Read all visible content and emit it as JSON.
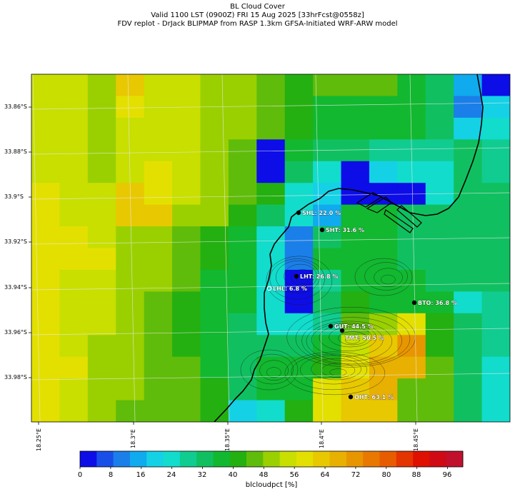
{
  "title": {
    "line1": "BL Cloud Cover",
    "line2": "Valid 1100 LST (0900Z) FRI 15 Aug 2025 [33hrFcst@0558z]",
    "line3": "FDV replot - DrJack BLIPMAP from RASP 1.3km GFSA-Initiated WRF-ARW model"
  },
  "lat_labels": [
    "33.86°S",
    "33.88°S",
    "33.9°S",
    "33.92°S",
    "33.94°S",
    "33.96°S",
    "33.98°S"
  ],
  "lon_labels": [
    "18.25°E",
    "18.3°E",
    "18.35°E",
    "18.4°E",
    "18.45°E"
  ],
  "colorbar": {
    "label": "blcloudpct [%]",
    "ticks": [
      "0",
      "8",
      "16",
      "24",
      "32",
      "40",
      "48",
      "56",
      "64",
      "72",
      "80",
      "88",
      "96"
    ],
    "colors": [
      "#0d0de8",
      "#1a4ee8",
      "#1a7fe8",
      "#10aaee",
      "#14d1e6",
      "#12dccc",
      "#10cc90",
      "#10c060",
      "#12b830",
      "#24b010",
      "#60bc0a",
      "#9ad000",
      "#c8df00",
      "#e3e000",
      "#e8c800",
      "#e8b000",
      "#e89600",
      "#e87800",
      "#e85c00",
      "#e43400",
      "#e01000",
      "#d00a14",
      "#c0102c"
    ]
  },
  "stations": [
    {
      "id": "SHL",
      "label": "SHL: 22.0 %",
      "value": 22.0
    },
    {
      "id": "SHT",
      "label": "SHT: 31.6 %",
      "value": 31.6
    },
    {
      "id": "LHT",
      "label": "LHT: 26.8 %",
      "value": 26.8
    },
    {
      "id": "LHL",
      "label": "LHL: 6.8 %",
      "value": 6.8
    },
    {
      "id": "BTO",
      "label": "BTO: 36.8 %",
      "value": 36.8
    },
    {
      "id": "GUT",
      "label": "GUT: 44.5 %",
      "value": 44.5
    },
    {
      "id": "TMT",
      "label": "TMT: 50.5 %",
      "value": 50.5
    },
    {
      "id": "OHT",
      "label": "OHT: 63.1 %",
      "value": 63.1
    }
  ],
  "grid_values": [
    [
      56,
      56,
      52,
      62,
      56,
      56,
      52,
      48,
      44,
      42,
      44,
      44,
      44,
      38,
      34,
      14,
      2
    ],
    [
      56,
      56,
      52,
      60,
      56,
      56,
      52,
      48,
      44,
      42,
      38,
      38,
      38,
      38,
      34,
      10,
      20
    ],
    [
      56,
      56,
      52,
      56,
      56,
      56,
      52,
      48,
      44,
      42,
      38,
      38,
      38,
      38,
      34,
      20,
      24
    ],
    [
      56,
      56,
      52,
      56,
      56,
      56,
      52,
      46,
      2,
      38,
      34,
      34,
      30,
      30,
      30,
      34,
      30
    ],
    [
      56,
      56,
      52,
      56,
      60,
      56,
      50,
      46,
      2,
      34,
      26,
      2,
      18,
      24,
      24,
      34,
      30
    ],
    [
      60,
      56,
      56,
      62,
      60,
      56,
      52,
      44,
      40,
      24,
      18,
      2,
      2,
      2,
      26,
      34,
      34
    ],
    [
      60,
      56,
      56,
      62,
      62,
      52,
      50,
      40,
      34,
      26,
      14,
      36,
      36,
      34,
      34,
      34,
      34
    ],
    [
      60,
      60,
      56,
      52,
      50,
      44,
      42,
      36,
      24,
      10,
      34,
      36,
      36,
      34,
      34,
      34,
      34
    ],
    [
      60,
      60,
      60,
      52,
      50,
      44,
      40,
      36,
      24,
      10,
      36,
      36,
      36,
      34,
      34,
      34,
      34
    ],
    [
      60,
      56,
      56,
      52,
      48,
      44,
      38,
      36,
      24,
      2,
      30,
      36,
      36,
      36,
      34,
      34,
      34
    ],
    [
      60,
      56,
      56,
      48,
      44,
      42,
      38,
      36,
      24,
      2,
      34,
      40,
      36,
      36,
      38,
      26,
      30
    ],
    [
      60,
      56,
      56,
      48,
      44,
      40,
      38,
      34,
      24,
      22,
      30,
      44,
      50,
      60,
      40,
      34,
      30
    ],
    [
      60,
      56,
      52,
      48,
      44,
      40,
      38,
      34,
      34,
      34,
      36,
      56,
      62,
      70,
      40,
      34,
      30
    ],
    [
      60,
      60,
      52,
      48,
      44,
      44,
      38,
      34,
      36,
      38,
      42,
      60,
      68,
      68,
      44,
      34,
      26
    ],
    [
      60,
      56,
      52,
      48,
      44,
      44,
      40,
      34,
      38,
      38,
      58,
      64,
      68,
      44,
      44,
      34,
      26
    ],
    [
      60,
      56,
      52,
      44,
      44,
      44,
      40,
      20,
      24,
      40,
      58,
      62,
      64,
      44,
      44,
      34,
      26
    ]
  ]
}
